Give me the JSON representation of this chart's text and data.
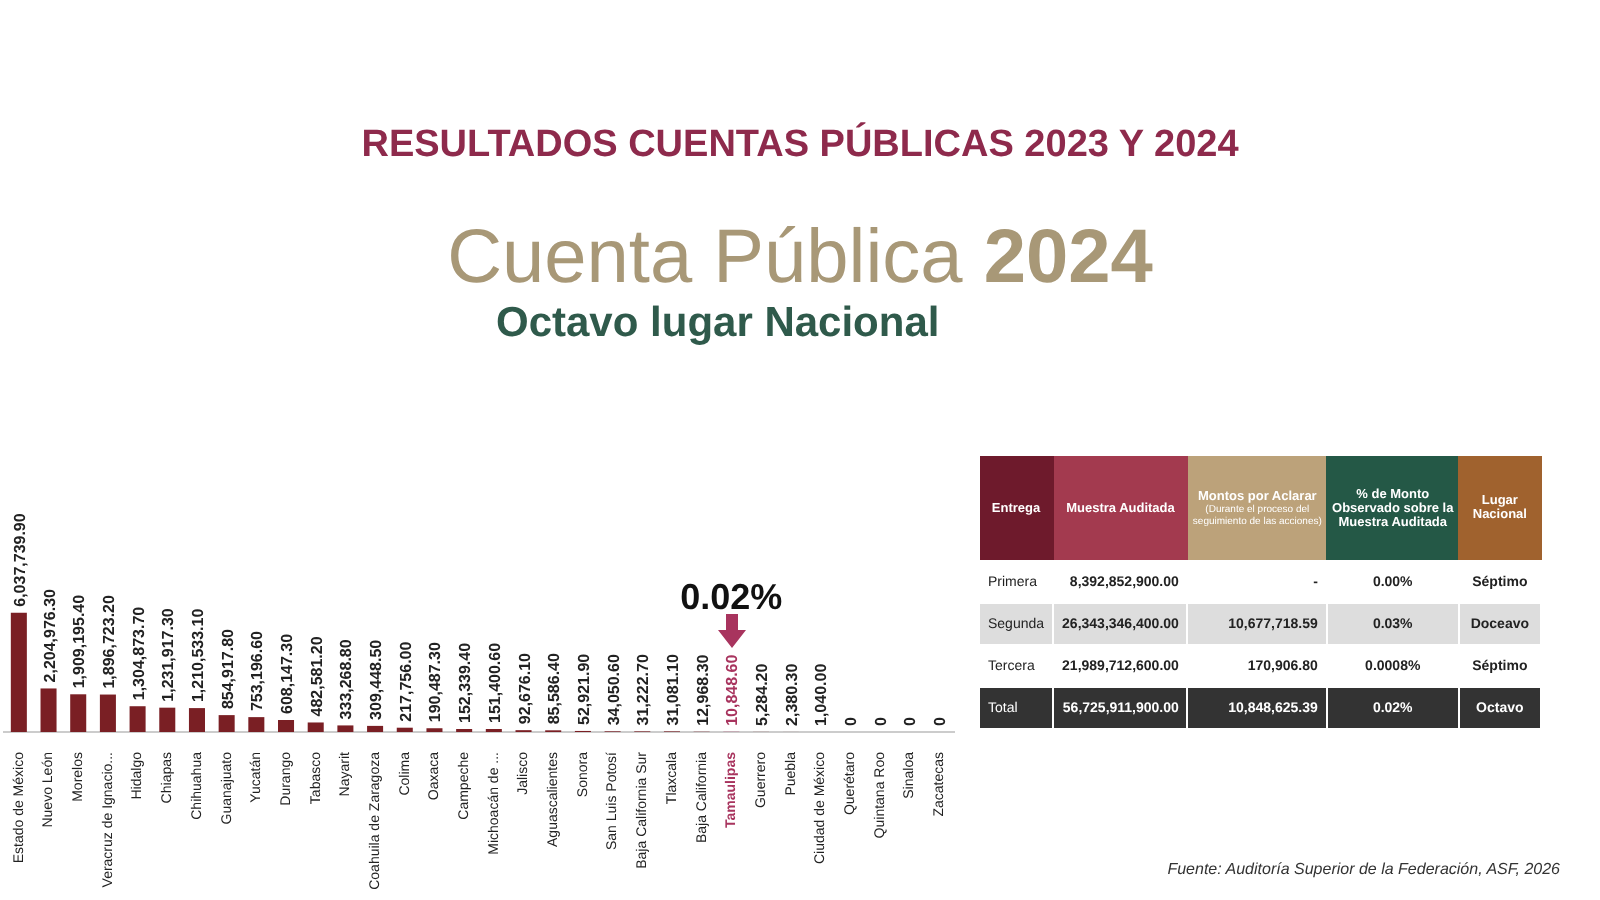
{
  "chart_data": [
    {
      "type": "bar",
      "title": "RESULTADOS CUENTAS PÚBLICAS 2023 Y 2024",
      "subtitle": "Cuenta Pública 2024",
      "categories": [
        "Estado de México",
        "Nuevo León",
        "Morelos",
        "Veracruz de Ignacio...",
        "Hidalgo",
        "Chiapas",
        "Chihuahua",
        "Guanajuato",
        "Yucatán",
        "Durango",
        "Tabasco",
        "Nayarit",
        "Coahuila de Zaragoza",
        "Colima",
        "Oaxaca",
        "Campeche",
        "Michoacán de ...",
        "Jalisco",
        "Aguascalientes",
        "Sonora",
        "San Luis Potosí",
        "Baja California Sur",
        "Tlaxcala",
        "Baja California",
        "Tamaulipas",
        "Guerrero",
        "Puebla",
        "Ciudad de México",
        "Querétaro",
        "Quintana Roo",
        "Sinaloa",
        "Zacatecas"
      ],
      "values": [
        6037739.9,
        2204976.3,
        1909195.4,
        1896723.2,
        1304873.7,
        1231917.3,
        1210533.1,
        854917.8,
        753196.6,
        608147.3,
        482581.2,
        333268.8,
        309448.5,
        217756.0,
        190487.3,
        152339.4,
        151400.6,
        92676.1,
        85586.4,
        52921.9,
        34050.6,
        31222.7,
        31081.1,
        12968.3,
        10848.6,
        5284.2,
        2380.3,
        1040.0,
        0,
        0,
        0,
        0
      ],
      "value_labels": [
        "6,037,739.90",
        "2,204,976.30",
        "1,909,195.40",
        "1,896,723.20",
        "1,304,873.70",
        "1,231,917.30",
        "1,210,533.10",
        "854,917.80",
        "753,196.60",
        "608,147.30",
        "482,581.20",
        "333,268.80",
        "309,448.50",
        "217,756.00",
        "190,487.30",
        "152,339.40",
        "151,400.60",
        "92,676.10",
        "85,586.40",
        "52,921.90",
        "34,050.60",
        "31,222.70",
        "31,081.10",
        "12,968.30",
        "10,848.60",
        "5,284.20",
        "2,380.30",
        "1,040.00",
        "0",
        "0",
        "0",
        "0"
      ],
      "colors": [
        "#7a1f24",
        "#7a1f24",
        "#7a1f24",
        "#7a1f24",
        "#7a1f24",
        "#7a1f24",
        "#7a1f24",
        "#7a1f24",
        "#7a1f24",
        "#7a1f24",
        "#7a1f24",
        "#7a1f24",
        "#7a1f24",
        "#7a1f24",
        "#7a1f24",
        "#7a1f24",
        "#7a1f24",
        "#7a1f24",
        "#7a1f24",
        "#7a1f24",
        "#7a1f24",
        "#7a1f24",
        "#7a1f24",
        "#7a1f24",
        "#a8345e",
        "#7a1f24",
        "#7a1f24",
        "#7a1f24",
        "#7a1f24",
        "#7a1f24",
        "#7a1f24",
        "#7a1f24"
      ],
      "annotations": [
        "Octavo lugar Nacional",
        "0.02%"
      ]
    },
    {
      "type": "other",
      "annotations": [
        "Entrega",
        "Muestra Auditada",
        "Montos por Aclarar",
        "(Durante el proceso del seguimiento de las acciones)",
        "% de Monto Observado sobre la Muestra Auditada",
        "Lugar Nacional",
        "Primera",
        "8,392,852,900.00",
        "-",
        "0.00%",
        "Séptimo",
        "Segunda",
        "26,343,346,400.00",
        "10,677,718.59",
        "0.03%",
        "Doceavo",
        "Tercera",
        "21,989,712,600.00",
        "170,906.80",
        "0.0008%",
        "Séptimo",
        "Total",
        "56,725,911,900.00",
        "10,848,625.39",
        "0.02%",
        "Octavo",
        "Fuente: Auditoría Superior de la Federación, ASF, 2026"
      ]
    }
  ]
}
